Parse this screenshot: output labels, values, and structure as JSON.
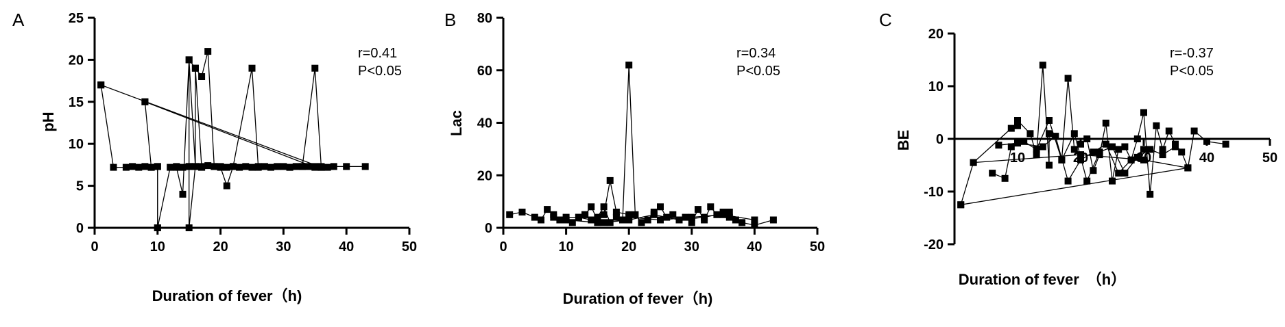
{
  "chart_data": [
    {
      "panel": "A",
      "type": "line",
      "xlabel": "Duration of fever（h)",
      "ylabel": "pH",
      "xlim": [
        0,
        50
      ],
      "ylim": [
        0,
        25
      ],
      "xticks": [
        0,
        10,
        20,
        30,
        40,
        50
      ],
      "yticks": [
        0,
        5,
        10,
        15,
        20,
        25
      ],
      "annotations": [
        "r=0.41",
        "P<0.05"
      ],
      "series": [
        {
          "x": [
            1,
            3,
            5,
            6,
            7,
            8,
            9,
            10,
            10,
            12,
            13,
            14,
            15,
            15,
            16,
            17,
            18,
            19,
            20,
            21,
            22,
            23,
            24,
            25,
            26,
            27,
            28,
            29,
            30,
            31,
            32,
            33,
            34,
            35,
            36,
            37,
            38,
            40,
            43
          ],
          "y": [
            17,
            7.2,
            7.2,
            7.3,
            7.2,
            7.3,
            7.2,
            7.3,
            0,
            7.2,
            7.3,
            7.2,
            7.3,
            20,
            7.3,
            7.3,
            7.4,
            7.3,
            7.3,
            7.2,
            7.3,
            7.2,
            7.3,
            7.2,
            7.3,
            7.3,
            7.2,
            7.3,
            7.3,
            7.2,
            7.3,
            7.3,
            7.3,
            7.3,
            7.3,
            7.2,
            7.3,
            7.3,
            7.3
          ]
        },
        {
          "x": [
            1,
            36
          ],
          "y": [
            17,
            7.2
          ]
        },
        {
          "x": [
            8,
            9,
            10,
            10
          ],
          "y": [
            15,
            7.2,
            7.3,
            0
          ]
        },
        {
          "x": [
            8,
            35
          ],
          "y": [
            15,
            7.2
          ]
        },
        {
          "x": [
            13,
            14,
            15,
            16,
            17,
            18,
            19,
            20,
            21,
            22,
            25,
            26
          ],
          "y": [
            7.2,
            4,
            20,
            19,
            18,
            21,
            7.3,
            7.2,
            5,
            7.3,
            19,
            7.2
          ]
        },
        {
          "x": [
            15,
            15,
            16,
            16,
            17
          ],
          "y": [
            7.3,
            0,
            7.3,
            19,
            7.2
          ]
        },
        {
          "x": [
            31,
            33,
            35,
            36
          ],
          "y": [
            7.2,
            7.3,
            19,
            7.2
          ]
        }
      ]
    },
    {
      "panel": "B",
      "type": "line",
      "xlabel": "Duration of fever（h)",
      "ylabel": "Lac",
      "xlim": [
        0,
        50
      ],
      "ylim": [
        0,
        80
      ],
      "xticks": [
        0,
        10,
        20,
        30,
        40,
        50
      ],
      "yticks": [
        0,
        20,
        40,
        60,
        80
      ],
      "annotations": [
        "r=0.34",
        "P<0.05"
      ],
      "series": [
        {
          "x": [
            1,
            3,
            5,
            6,
            7,
            8,
            9,
            10,
            11,
            12,
            13,
            14,
            15,
            16,
            17,
            18,
            19,
            20,
            21,
            22,
            23,
            24,
            25,
            26,
            27,
            28,
            29,
            30,
            31,
            32,
            33,
            34,
            35,
            36,
            37,
            38,
            40,
            43
          ],
          "y": [
            5,
            6,
            4,
            3,
            7,
            5,
            3,
            4,
            2,
            4,
            5,
            3,
            4,
            8,
            2,
            4,
            3,
            62,
            5,
            2,
            3,
            6,
            8,
            4,
            5,
            3,
            4,
            2,
            7,
            3,
            8,
            5,
            6,
            4,
            3,
            2,
            1,
            3
          ]
        },
        {
          "x": [
            13,
            14,
            15,
            16,
            17,
            18,
            20
          ],
          "y": [
            5,
            8,
            3,
            5,
            18,
            6,
            5
          ]
        },
        {
          "x": [
            10,
            15,
            20,
            25,
            30,
            35,
            40
          ],
          "y": [
            3,
            2,
            4,
            3,
            4,
            5,
            3
          ]
        },
        {
          "x": [
            8,
            12,
            16,
            20,
            24,
            28,
            32,
            36
          ],
          "y": [
            4,
            4,
            2,
            3,
            5,
            3,
            4,
            6
          ]
        }
      ]
    },
    {
      "panel": "C",
      "type": "line",
      "xlabel": "Duration of fever　（h）",
      "ylabel": "BE",
      "xlim": [
        0,
        50
      ],
      "ylim": [
        -20,
        20
      ],
      "xticks": [
        10,
        20,
        30,
        40,
        50
      ],
      "yticks": [
        -20,
        -10,
        0,
        10,
        20
      ],
      "annotations": [
        "r=-0.37",
        "P<0.05"
      ],
      "series": [
        {
          "x": [
            1,
            3,
            9,
            10,
            10,
            12,
            13,
            14,
            15,
            15,
            16,
            17,
            18,
            19,
            20,
            21,
            22,
            23,
            24,
            25,
            26,
            27,
            28,
            29,
            30,
            31,
            32,
            33,
            34,
            35,
            36,
            37,
            38,
            40,
            43
          ],
          "y": [
            -12.5,
            -4.5,
            2,
            2.5,
            3.5,
            1,
            -3,
            14,
            -5,
            1,
            0.5,
            -4,
            11.5,
            -2,
            -1,
            0,
            -6,
            -3,
            3,
            -8,
            -2,
            -1.5,
            -4,
            0,
            5,
            -10.5,
            2.5,
            -2,
            1.5,
            -1,
            -2.5,
            -5.5,
            1.5,
            -0.5,
            -1
          ]
        },
        {
          "x": [
            6,
            8,
            9,
            11,
            13,
            15,
            17,
            19,
            21,
            23,
            25,
            27,
            29,
            31,
            33,
            35
          ],
          "y": [
            -6.5,
            -7.5,
            -1.5,
            -0.5,
            -2,
            3.5,
            -4,
            1,
            -8,
            -2.5,
            -1.5,
            -6.5,
            -3.5,
            -2,
            -3,
            -1.5
          ]
        },
        {
          "x": [
            3,
            20,
            30,
            37
          ],
          "y": [
            -4.5,
            -3,
            -4,
            -5.5
          ]
        },
        {
          "x": [
            1,
            37
          ],
          "y": [
            -12.5,
            -5.5
          ]
        },
        {
          "x": [
            7,
            10,
            14,
            16,
            18,
            20,
            22,
            24,
            26,
            28,
            30
          ],
          "y": [
            -1.2,
            -0.8,
            -1.5,
            0.5,
            -8,
            -4,
            -2.5,
            -1,
            -6.5,
            -4,
            -2
          ]
        }
      ]
    }
  ]
}
